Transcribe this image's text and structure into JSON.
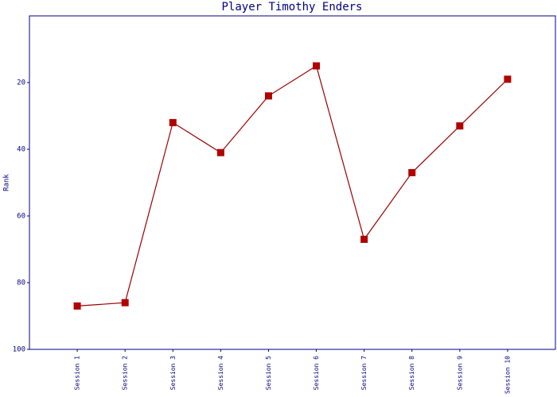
{
  "chart_data": {
    "type": "line",
    "title": "Player Timothy Enders",
    "y_label": "Rank",
    "categories": [
      "Session 1",
      "Session 2",
      "Session 3",
      "Session 4",
      "Session 5",
      "Session 6",
      "Session 7",
      "Session 8",
      "Session 9",
      "Session 10"
    ],
    "values": [
      87,
      86,
      32,
      41,
      24,
      15,
      67,
      47,
      33,
      19
    ],
    "color": "#b00000",
    "ylim": [
      100,
      0
    ],
    "yticks": [
      20,
      40,
      60,
      80,
      100
    ],
    "grid": false
  }
}
